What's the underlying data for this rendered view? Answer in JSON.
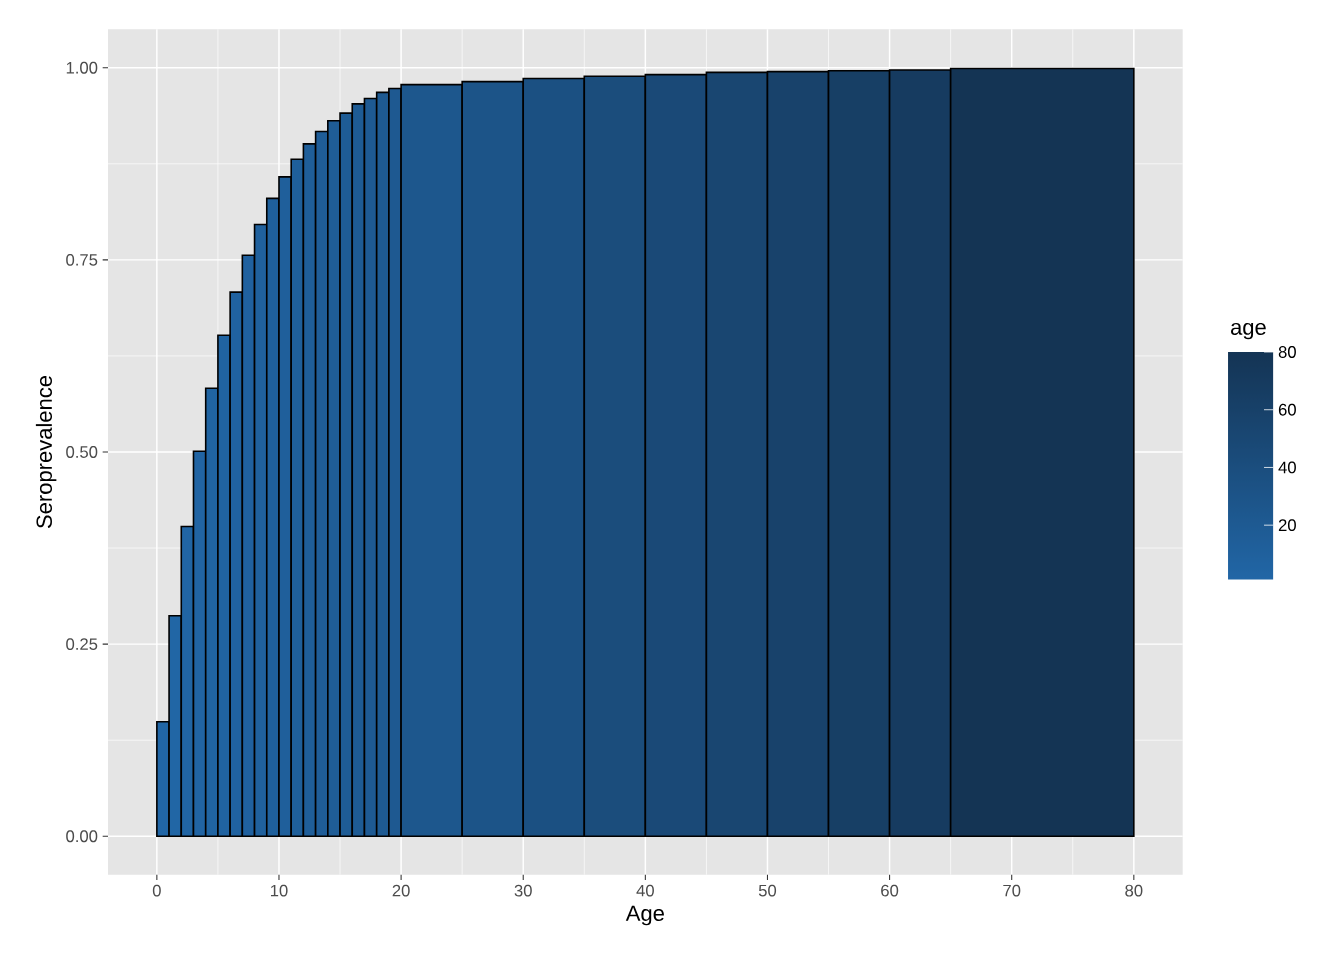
{
  "chart_data": {
    "type": "histogram",
    "xlabel": "Age",
    "ylabel": "Seroprevalence",
    "clabel": "age",
    "bins": [
      0,
      1,
      2,
      3,
      4,
      5,
      6,
      7,
      8,
      9,
      10,
      11,
      12,
      13,
      14,
      15,
      16,
      17,
      18,
      19,
      20,
      25,
      30,
      35,
      40,
      45,
      50,
      55,
      60,
      65,
      80
    ],
    "values": [
      0.149,
      0.287,
      0.403,
      0.501,
      0.583,
      0.652,
      0.708,
      0.756,
      0.796,
      0.83,
      0.858,
      0.881,
      0.901,
      0.917,
      0.931,
      0.941,
      0.953,
      0.96,
      0.968,
      0.973,
      0.978,
      0.982,
      0.986,
      0.989,
      0.991,
      0.994,
      0.995,
      0.996,
      0.997,
      0.999
    ],
    "colors": [
      "#2166a6",
      "#2166a5",
      "#2165a4",
      "#2164a3",
      "#2064a2",
      "#2063a1",
      "#2062a0",
      "#20619f",
      "#20619d",
      "#1f609c",
      "#1f5f9b",
      "#1f5f9a",
      "#1f5e99",
      "#1f5d98",
      "#1f5d96",
      "#1e5c95",
      "#1e5b94",
      "#1e5a93",
      "#1e5a92",
      "#1e5991",
      "#1d578d",
      "#1c5488",
      "#1b5082",
      "#1b4d7c",
      "#1a4977",
      "#194671",
      "#18426b",
      "#173f65",
      "#163b60",
      "#143454"
    ],
    "xlim": [
      -4,
      84
    ],
    "ylim": [
      -0.05,
      1.05
    ],
    "xticks": [
      0,
      10,
      20,
      30,
      40,
      50,
      60,
      70,
      80
    ],
    "yticks": [
      {
        "value": 0,
        "label": "0.00"
      },
      {
        "value": 0.25,
        "label": "0.25"
      },
      {
        "value": 0.5,
        "label": "0.50"
      },
      {
        "value": 0.75,
        "label": "0.75"
      },
      {
        "value": 1,
        "label": "1.00"
      }
    ],
    "clim": [
      1,
      80
    ],
    "cticks": [
      20,
      40,
      60,
      80
    ],
    "grid": true
  }
}
